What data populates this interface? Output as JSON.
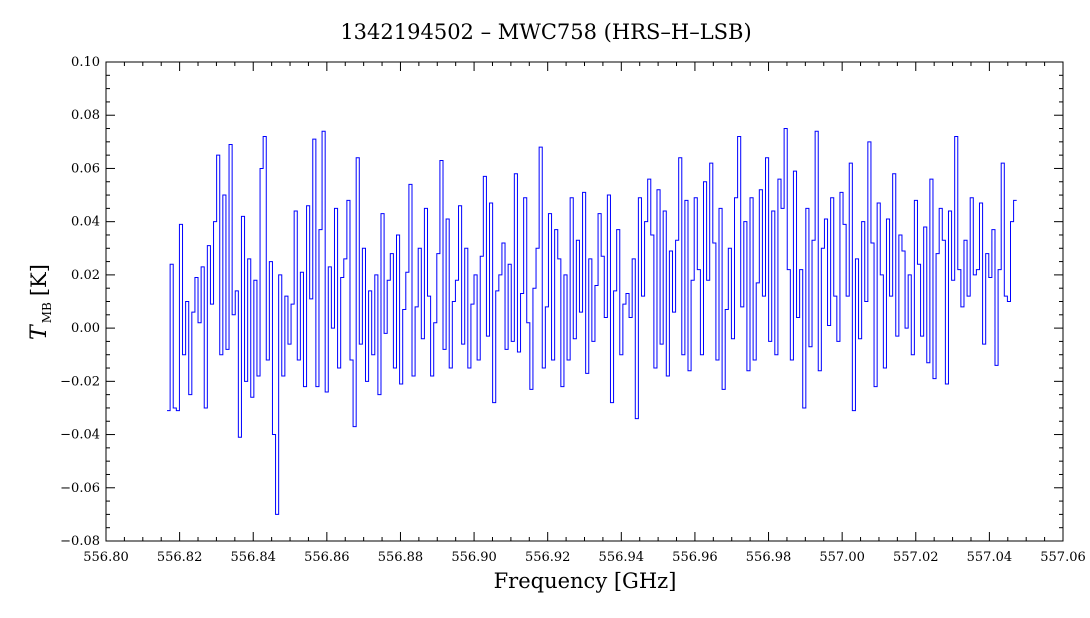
{
  "chart_data": {
    "type": "line",
    "title": "1342194502 – MWC758 (HRS–H–LSB)",
    "xlabel": "Frequency [GHz]",
    "ylabel": {
      "main": "T",
      "sub": "MB",
      "unit": "[K]"
    },
    "xlim": [
      556.8,
      557.06
    ],
    "ylim": [
      -0.08,
      0.1
    ],
    "xticks": [
      "556.80",
      "556.82",
      "556.84",
      "556.86",
      "556.88",
      "556.90",
      "556.92",
      "556.94",
      "556.96",
      "556.98",
      "557.00",
      "557.02",
      "557.04",
      "557.06"
    ],
    "yticks": [
      "−0.08",
      "−0.06",
      "−0.04",
      "−0.02",
      "0.00",
      "0.02",
      "0.04",
      "0.06",
      "0.08",
      "0.10"
    ],
    "series": [
      {
        "color": "#0000ff",
        "x_start": 556.817,
        "x_end": 557.047,
        "values": [
          -0.031,
          0.024,
          -0.03,
          -0.031,
          0.039,
          -0.01,
          0.01,
          -0.025,
          0.006,
          0.019,
          0.002,
          0.023,
          -0.03,
          0.031,
          0.009,
          0.04,
          0.065,
          -0.01,
          0.05,
          -0.008,
          0.069,
          0.005,
          0.014,
          -0.041,
          0.042,
          -0.02,
          0.026,
          -0.026,
          0.018,
          -0.018,
          0.06,
          0.072,
          -0.012,
          0.025,
          -0.04,
          -0.07,
          0.02,
          -0.018,
          0.012,
          -0.006,
          0.009,
          0.044,
          -0.012,
          0.021,
          -0.022,
          0.046,
          0.011,
          0.071,
          -0.022,
          0.037,
          0.074,
          -0.024,
          0.023,
          0.0,
          0.045,
          -0.015,
          0.019,
          0.026,
          0.048,
          -0.012,
          -0.037,
          0.064,
          -0.006,
          0.03,
          -0.02,
          0.014,
          -0.01,
          0.02,
          -0.025,
          0.043,
          -0.002,
          0.018,
          0.028,
          -0.015,
          0.035,
          -0.021,
          0.007,
          0.021,
          0.054,
          -0.018,
          0.008,
          0.03,
          -0.004,
          0.045,
          0.012,
          -0.018,
          0.002,
          0.028,
          0.063,
          -0.008,
          0.041,
          -0.015,
          0.01,
          0.018,
          0.046,
          -0.006,
          0.03,
          -0.015,
          0.009,
          0.02,
          -0.012,
          0.027,
          0.057,
          -0.003,
          0.047,
          -0.028,
          0.014,
          0.02,
          0.032,
          -0.008,
          0.024,
          -0.005,
          0.058,
          -0.009,
          0.013,
          0.049,
          0.002,
          -0.023,
          0.015,
          0.03,
          0.068,
          -0.015,
          0.008,
          0.043,
          -0.012,
          0.037,
          0.026,
          -0.022,
          0.02,
          -0.012,
          0.049,
          -0.004,
          0.033,
          0.006,
          0.051,
          -0.017,
          0.026,
          -0.005,
          0.016,
          0.043,
          0.027,
          0.004,
          0.05,
          -0.028,
          0.014,
          0.037,
          -0.01,
          0.009,
          0.013,
          0.004,
          0.026,
          -0.034,
          0.049,
          0.012,
          0.04,
          0.056,
          0.035,
          -0.015,
          0.052,
          -0.006,
          0.044,
          -0.018,
          0.029,
          0.006,
          0.033,
          0.064,
          -0.01,
          0.048,
          -0.016,
          0.018,
          0.049,
          0.022,
          -0.01,
          0.055,
          0.018,
          0.062,
          0.032,
          -0.012,
          0.045,
          -0.023,
          0.007,
          0.03,
          -0.004,
          0.049,
          0.072,
          0.008,
          0.04,
          -0.016,
          0.049,
          -0.012,
          0.017,
          0.052,
          0.012,
          0.064,
          -0.005,
          0.044,
          -0.01,
          0.056,
          0.045,
          0.075,
          0.022,
          -0.012,
          0.059,
          0.004,
          0.022,
          -0.03,
          0.045,
          -0.007,
          0.033,
          0.074,
          -0.016,
          0.03,
          0.041,
          0.001,
          0.049,
          0.012,
          -0.005,
          0.051,
          0.039,
          0.012,
          0.062,
          -0.031,
          0.026,
          -0.004,
          0.04,
          0.01,
          0.07,
          0.032,
          -0.022,
          0.047,
          0.02,
          -0.015,
          0.041,
          0.012,
          0.058,
          -0.003,
          0.035,
          0.029,
          0.0,
          0.02,
          -0.01,
          0.048,
          0.024,
          -0.003,
          0.038,
          -0.013,
          0.056,
          -0.019,
          0.028,
          0.045,
          0.033,
          -0.021,
          0.044,
          0.018,
          0.072,
          0.022,
          0.008,
          0.033,
          0.012,
          0.049,
          0.02,
          0.022,
          0.047,
          -0.006,
          0.028,
          0.019,
          0.037,
          -0.014,
          0.022,
          0.062,
          0.012,
          0.01,
          0.04,
          0.048
        ]
      }
    ],
    "grid": false,
    "legend": "none"
  }
}
